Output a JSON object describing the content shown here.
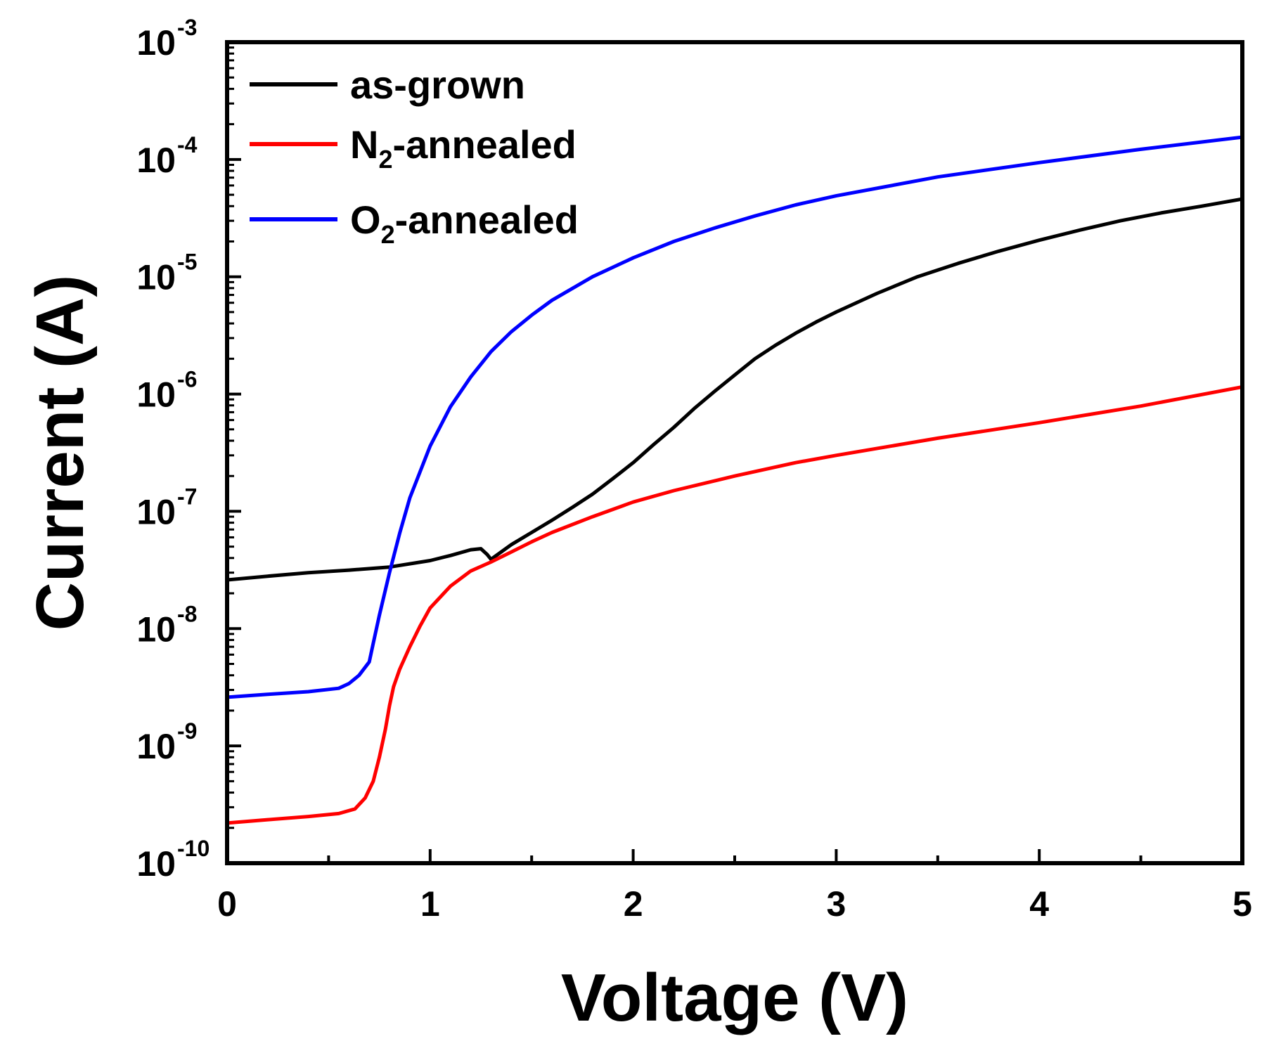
{
  "chart_data": {
    "type": "line",
    "title": "",
    "xlabel": "Voltage (V)",
    "ylabel": "Current (A)",
    "xlim": [
      0,
      5
    ],
    "ylim": [
      1e-10,
      0.001
    ],
    "yscale": "log",
    "grid": false,
    "legend_position": "top-left",
    "x_ticks": [
      "0",
      "1",
      "2",
      "3",
      "4",
      "5"
    ],
    "y_ticks": [
      {
        "base": "10",
        "exp": "-10"
      },
      {
        "base": "10",
        "exp": "-9"
      },
      {
        "base": "10",
        "exp": "-8"
      },
      {
        "base": "10",
        "exp": "-7"
      },
      {
        "base": "10",
        "exp": "-6"
      },
      {
        "base": "10",
        "exp": "-5"
      },
      {
        "base": "10",
        "exp": "-4"
      },
      {
        "base": "10",
        "exp": "-3"
      }
    ],
    "series": [
      {
        "name": "as-grown",
        "legend": {
          "main": "as-grown",
          "sub": "",
          "rest": ""
        },
        "color": "#000000",
        "x": [
          0,
          0.2,
          0.4,
          0.6,
          0.8,
          1.0,
          1.1,
          1.2,
          1.25,
          1.28,
          1.3,
          1.4,
          1.5,
          1.6,
          1.7,
          1.8,
          1.9,
          2.0,
          2.1,
          2.2,
          2.3,
          2.4,
          2.5,
          2.6,
          2.7,
          2.8,
          2.9,
          3.0,
          3.2,
          3.4,
          3.6,
          3.8,
          4.0,
          4.2,
          4.4,
          4.6,
          4.8,
          5.0
        ],
        "y": [
          2.6e-08,
          2.8e-08,
          3e-08,
          3.15e-08,
          3.35e-08,
          3.8e-08,
          4.2e-08,
          4.7e-08,
          4.8e-08,
          4.3e-08,
          3.9e-08,
          5.2e-08,
          6.6e-08,
          8.4e-08,
          1.08e-07,
          1.4e-07,
          1.9e-07,
          2.6e-07,
          3.7e-07,
          5.2e-07,
          7.5e-07,
          1.05e-06,
          1.45e-06,
          2e-06,
          2.6e-06,
          3.3e-06,
          4.1e-06,
          5e-06,
          7.2e-06,
          1e-05,
          1.3e-05,
          1.65e-05,
          2.05e-05,
          2.5e-05,
          3e-05,
          3.5e-05,
          4e-05,
          4.6e-05
        ]
      },
      {
        "name": "N2-annealed",
        "legend": {
          "main": "N",
          "sub": "2",
          "rest": "-annealed"
        },
        "color": "#ff0000",
        "x": [
          0,
          0.2,
          0.4,
          0.55,
          0.63,
          0.68,
          0.72,
          0.75,
          0.78,
          0.8,
          0.82,
          0.85,
          0.9,
          0.95,
          1.0,
          1.1,
          1.2,
          1.3,
          1.4,
          1.5,
          1.6,
          1.8,
          2.0,
          2.2,
          2.5,
          2.8,
          3.0,
          3.5,
          4.0,
          4.5,
          5.0
        ],
        "y": [
          2.2e-10,
          2.35e-10,
          2.5e-10,
          2.65e-10,
          2.9e-10,
          3.6e-10,
          5e-10,
          8e-10,
          1.4e-09,
          2.2e-09,
          3.2e-09,
          4.5e-09,
          7e-09,
          1.05e-08,
          1.5e-08,
          2.3e-08,
          3.1e-08,
          3.7e-08,
          4.5e-08,
          5.5e-08,
          6.6e-08,
          9e-08,
          1.2e-07,
          1.5e-07,
          2e-07,
          2.6e-07,
          3e-07,
          4.2e-07,
          5.7e-07,
          7.9e-07,
          1.15e-06
        ]
      },
      {
        "name": "O2-annealed",
        "legend": {
          "main": "O",
          "sub": "2",
          "rest": "-annealed"
        },
        "color": "#0000ff",
        "x": [
          0,
          0.2,
          0.4,
          0.55,
          0.6,
          0.65,
          0.7,
          0.72,
          0.75,
          0.8,
          0.85,
          0.9,
          1.0,
          1.1,
          1.2,
          1.3,
          1.4,
          1.5,
          1.6,
          1.8,
          2.0,
          2.2,
          2.4,
          2.6,
          2.8,
          3.0,
          3.5,
          4.0,
          4.5,
          5.0
        ],
        "y": [
          2.6e-09,
          2.75e-09,
          2.9e-09,
          3.1e-09,
          3.4e-09,
          4e-09,
          5.2e-09,
          7.5e-09,
          1.3e-08,
          3e-08,
          6.5e-08,
          1.3e-07,
          3.6e-07,
          7.8e-07,
          1.4e-06,
          2.3e-06,
          3.4e-06,
          4.7e-06,
          6.3e-06,
          1e-05,
          1.45e-05,
          2e-05,
          2.6e-05,
          3.3e-05,
          4.1e-05,
          4.9e-05,
          7.1e-05,
          9.4e-05,
          0.000122,
          0.000155
        ]
      }
    ]
  }
}
